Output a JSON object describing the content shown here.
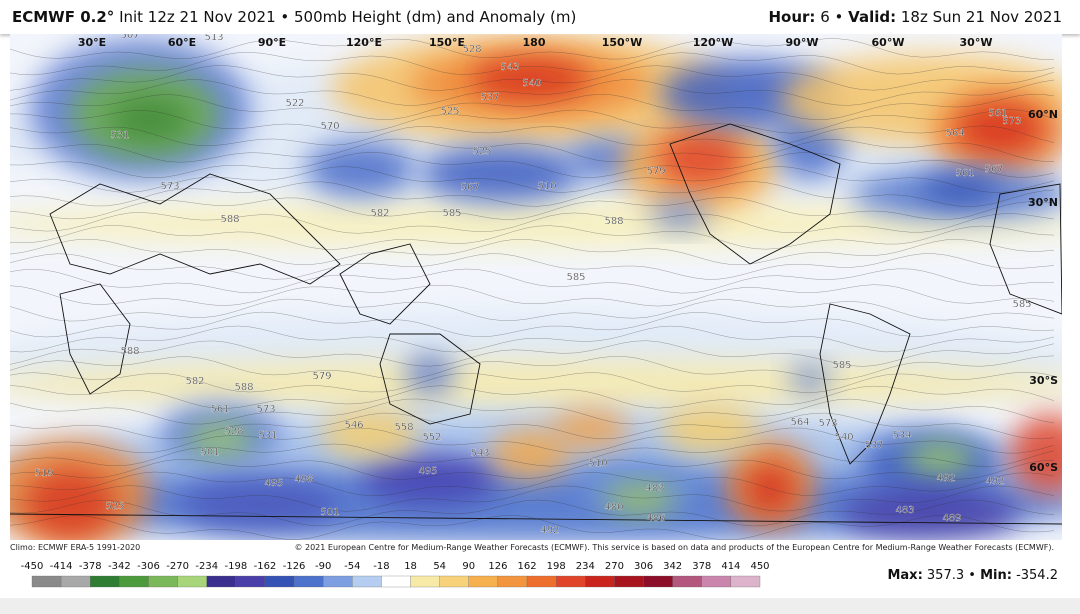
{
  "header": {
    "model": "ECMWF 0.2°",
    "run": "Init 12z 21 Nov 2021 • 500mb Height (dm) and Anomaly (m)",
    "hour_label": "Hour:",
    "hour": "6",
    "sep": "•",
    "valid_label": "Valid:",
    "valid": "18z Sun 21 Nov 2021"
  },
  "map": {
    "longitudes": [
      "30°E",
      "60°E",
      "90°E",
      "120°E",
      "150°E",
      "180",
      "150°W",
      "120°W",
      "90°W",
      "60°W",
      "30°W"
    ],
    "latitudes": [
      "60°N",
      "30°N",
      "30°S",
      "60°S"
    ],
    "contour_labels": [
      507,
      513,
      543,
      540,
      537,
      525,
      528,
      531,
      522,
      570,
      567,
      573,
      588,
      582,
      585,
      525,
      510,
      579,
      588,
      561,
      573,
      567,
      564,
      561,
      588,
      582,
      588,
      579,
      573,
      561,
      528,
      531,
      546,
      558,
      552,
      501,
      519,
      525,
      495,
      498,
      501,
      495,
      543,
      510,
      483,
      480,
      486,
      492,
      573,
      564,
      540,
      534,
      537,
      492,
      492,
      483,
      489,
      585,
      585,
      585
    ]
  },
  "footer": {
    "climo": "Climo: ECMWF ERA-5 1991-2020",
    "copyright": "© 2021 European Centre for Medium-Range Weather Forecasts (ECMWF). This service is based on data and products of the European Centre for Medium-Range Weather Forecasts (ECMWF).",
    "colorbar_ticks": [
      -450,
      -414,
      -378,
      -342,
      -306,
      -270,
      -234,
      -198,
      -162,
      -126,
      -90,
      -54,
      -18,
      18,
      54,
      90,
      126,
      162,
      198,
      234,
      270,
      306,
      342,
      378,
      414,
      450
    ],
    "max_label": "Max:",
    "max": "357.3",
    "sep": "•",
    "min_label": "Min:",
    "min": "-354.2"
  }
}
